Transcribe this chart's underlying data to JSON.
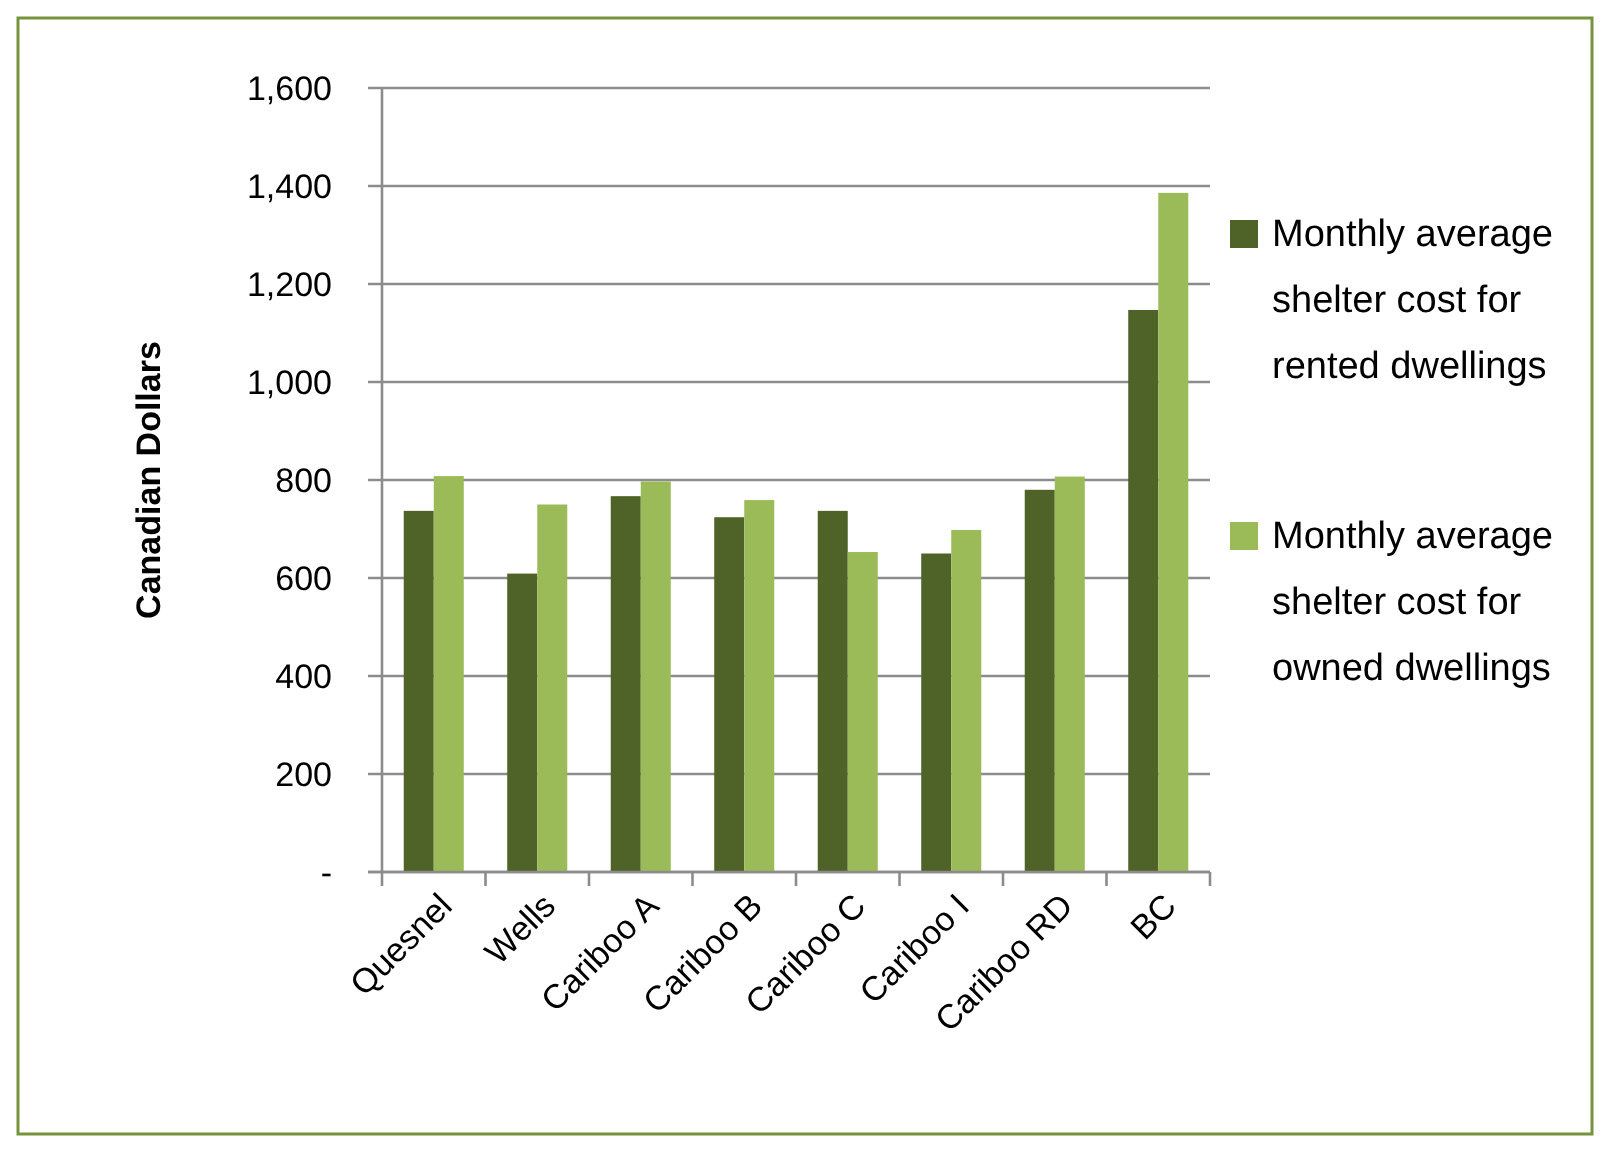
{
  "chart_data": {
    "type": "bar",
    "ylabel": "Canadian Dollars",
    "categories": [
      "Quesnel",
      "Wells",
      "Cariboo A",
      "Cariboo B",
      "Cariboo C",
      "Cariboo I",
      "Cariboo RD",
      "BC"
    ],
    "series": [
      {
        "name": "Monthly average shelter cost for rented dwellings",
        "color": "#4f6228",
        "values": [
          737,
          609,
          767,
          724,
          737,
          650,
          780,
          1147
        ]
      },
      {
        "name": "Monthly average shelter cost for owned dwellings",
        "color": "#9bbb59",
        "values": [
          808,
          750,
          797,
          759,
          653,
          698,
          807,
          1386
        ]
      }
    ],
    "ylim": [
      0,
      1600
    ],
    "yticks": [
      {
        "value": 0,
        "label": "-"
      },
      {
        "value": 200,
        "label": "200"
      },
      {
        "value": 400,
        "label": "400"
      },
      {
        "value": 600,
        "label": "600"
      },
      {
        "value": 800,
        "label": "800"
      },
      {
        "value": 1000,
        "label": "1,000"
      },
      {
        "value": 1200,
        "label": "1,200"
      },
      {
        "value": 1400,
        "label": "1,400"
      },
      {
        "value": 1600,
        "label": "1,600"
      }
    ],
    "grid": "y",
    "legend": "right"
  }
}
